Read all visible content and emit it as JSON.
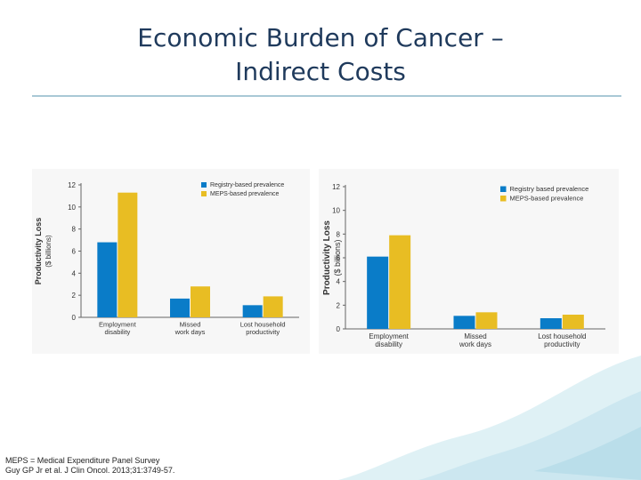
{
  "slide": {
    "title_line1": "Economic Burden of Cancer –",
    "title_line2": "Indirect Costs",
    "footnote_line1": "MEPS = Medical Expenditure Panel Survey",
    "footnote_line2": "Guy GP Jr et al. J Clin Oncol. 2013;31:3749-57."
  },
  "colors": {
    "registry": "#0a7cc8",
    "meps": "#e8bd23",
    "title": "#1f3a5c",
    "rule": "#a9c8d6"
  },
  "chart_data": [
    {
      "type": "bar",
      "categories": [
        "Employment disability",
        "Missed work days",
        "Lost household productivity"
      ],
      "category_lines": [
        [
          "Employment",
          "disability"
        ],
        [
          "Missed",
          "work days"
        ],
        [
          "Lost household",
          "productivity"
        ]
      ],
      "series": [
        {
          "name": "Registry-based prevalence",
          "values": [
            6.8,
            1.7,
            1.1
          ]
        },
        {
          "name": "MEPS-based prevalence",
          "values": [
            11.3,
            2.8,
            1.9
          ]
        }
      ],
      "ylabel_line1": "Productivity Loss",
      "ylabel_line2": "($ billions)",
      "ylim": [
        0,
        12
      ],
      "yticks": [
        0,
        2,
        4,
        6,
        8,
        10,
        12
      ],
      "legend_position": "top-right",
      "grid": false
    },
    {
      "type": "bar",
      "categories": [
        "Employment disability",
        "Missed work days",
        "Lost household productivity"
      ],
      "category_lines": [
        [
          "Employment",
          "disability"
        ],
        [
          "Missed",
          "work days"
        ],
        [
          "Lost household",
          "productivity"
        ]
      ],
      "series": [
        {
          "name": "Registry based prevalence",
          "values": [
            6.1,
            1.1,
            0.9
          ]
        },
        {
          "name": "MEPS-based prevalence",
          "values": [
            7.9,
            1.4,
            1.2
          ]
        }
      ],
      "ylabel_line1": "Productivity Loss",
      "ylabel_line2": "($ billions)",
      "ylim": [
        0,
        12
      ],
      "yticks": [
        0,
        2,
        4,
        6,
        8,
        10,
        12
      ],
      "legend_position": "top-right",
      "grid": false
    }
  ]
}
